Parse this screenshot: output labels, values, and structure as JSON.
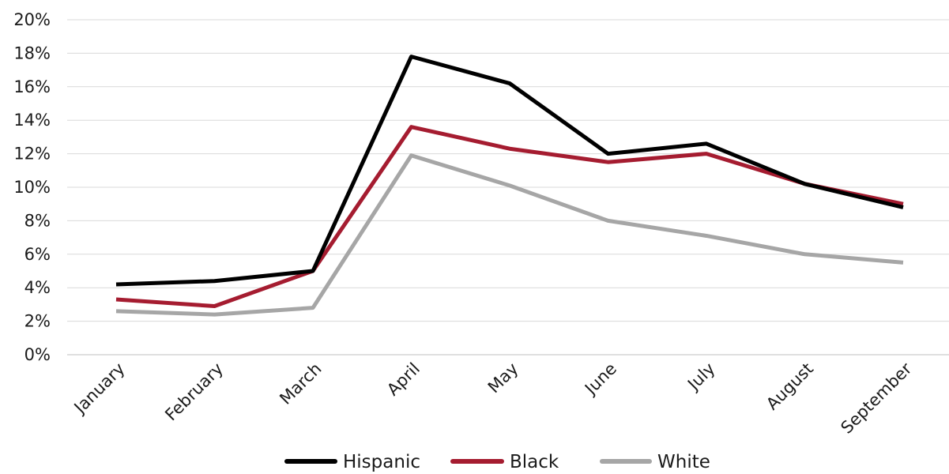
{
  "chart_data": {
    "type": "line",
    "title": "",
    "xlabel": "",
    "ylabel": "",
    "categories": [
      "January",
      "February",
      "March",
      "April",
      "May",
      "June",
      "July",
      "August",
      "September"
    ],
    "y_ticks": [
      "0%",
      "2%",
      "4%",
      "6%",
      "8%",
      "10%",
      "12%",
      "14%",
      "16%",
      "18%",
      "20%"
    ],
    "ylim": [
      0,
      20
    ],
    "grid": "horizontal",
    "legend_position": "bottom",
    "series": [
      {
        "name": "Hispanic",
        "color": "#000000",
        "values": [
          4.2,
          4.4,
          5.0,
          17.8,
          16.2,
          12.0,
          12.6,
          10.2,
          8.8
        ]
      },
      {
        "name": "Black",
        "color": "#a51c30",
        "values": [
          3.3,
          2.9,
          5.0,
          13.6,
          12.3,
          11.5,
          12.0,
          10.2,
          9.0
        ]
      },
      {
        "name": "White",
        "color": "#a6a6a6",
        "values": [
          2.6,
          2.4,
          2.8,
          11.9,
          10.1,
          8.0,
          7.1,
          6.0,
          5.5
        ]
      }
    ]
  }
}
